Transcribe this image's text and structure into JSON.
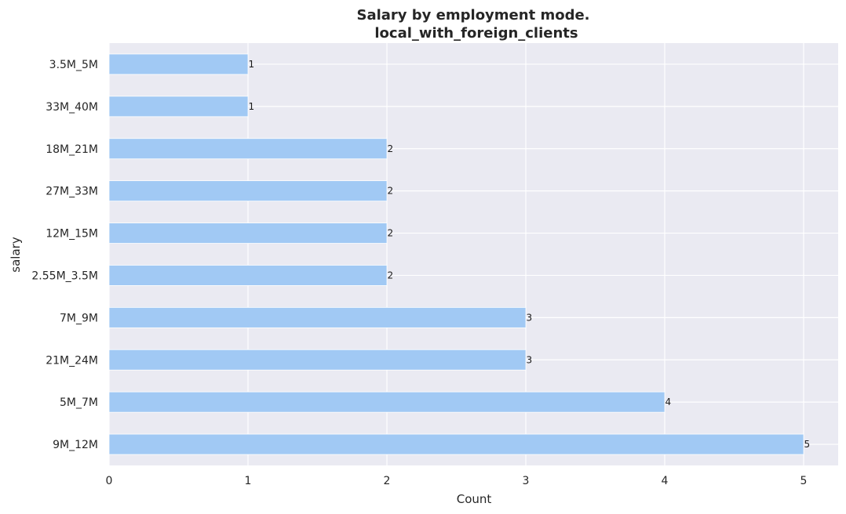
{
  "chart_data": {
    "type": "bar",
    "orientation": "horizontal",
    "title": [
      "Salary by employment mode.",
      "local_with_foreign_clients"
    ],
    "xlabel": "Count",
    "ylabel": "salary",
    "xlim": [
      0,
      5.25
    ],
    "x_ticks": [
      0,
      1,
      2,
      3,
      4,
      5
    ],
    "grid": true,
    "categories": [
      "3.5M_5M",
      "33M_40M",
      "18M_21M",
      "27M_33M",
      "12M_15M",
      "2.55M_3.5M",
      "7M_9M",
      "21M_24M",
      "5M_7M",
      "9M_12M"
    ],
    "values": [
      1,
      1,
      2,
      2,
      2,
      2,
      3,
      3,
      4,
      5
    ],
    "data_labels": [
      "1",
      "1",
      "2",
      "2",
      "2",
      "2",
      "3",
      "3",
      "4",
      "5"
    ]
  },
  "colors": {
    "plot_background": "#eaeaf2",
    "grid": "#ffffff",
    "bar": "#a1c9f4",
    "text": "#262626"
  }
}
